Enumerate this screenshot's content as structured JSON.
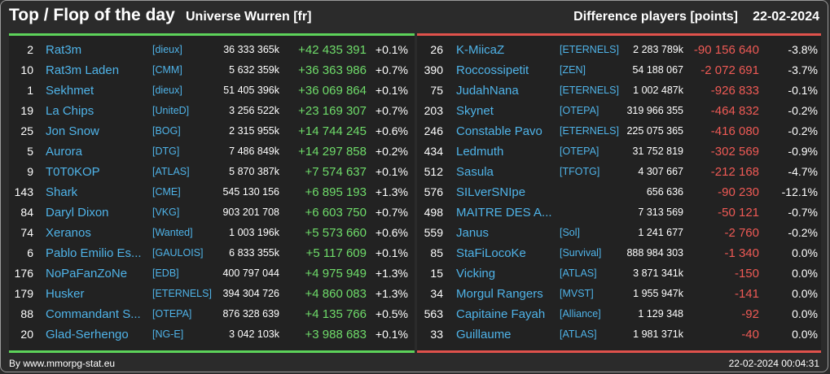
{
  "header": {
    "title": "Top / Flop of the day",
    "universe": "Universe Wurren [fr]",
    "difference_label": "Difference players [points]",
    "date": "22-02-2024"
  },
  "colors": {
    "top_accent": "#5dd35a",
    "flop_accent": "#e0524c",
    "name_link": "#4fb3e8"
  },
  "top": [
    {
      "rank": "2",
      "name": "Rat3m",
      "tag": "[dieux]",
      "total": "36 333 365k",
      "delta": "+42 435 391",
      "pct": "+0.1%"
    },
    {
      "rank": "10",
      "name": "Rat3m Laden",
      "tag": "[CMM]",
      "total": "5 632 359k",
      "delta": "+36 363 986",
      "pct": "+0.7%"
    },
    {
      "rank": "1",
      "name": "Sekhmet",
      "tag": "[dieux]",
      "total": "51 405 396k",
      "delta": "+36 069 864",
      "pct": "+0.1%"
    },
    {
      "rank": "19",
      "name": "La Chips",
      "tag": "[UniteD]",
      "total": "3 256 522k",
      "delta": "+23 169 307",
      "pct": "+0.7%"
    },
    {
      "rank": "25",
      "name": "Jon Snow",
      "tag": "[BOG]",
      "total": "2 315 955k",
      "delta": "+14 744 245",
      "pct": "+0.6%"
    },
    {
      "rank": "5",
      "name": "Aurora",
      "tag": "[DTG]",
      "total": "7 486 849k",
      "delta": "+14 297 858",
      "pct": "+0.2%"
    },
    {
      "rank": "9",
      "name": "T0T0KOP",
      "tag": "[ATLAS]",
      "total": "5 870 387k",
      "delta": "+7 574 637",
      "pct": "+0.1%"
    },
    {
      "rank": "143",
      "name": "Shark",
      "tag": "[CME]",
      "total": "545 130 156",
      "delta": "+6 895 193",
      "pct": "+1.3%"
    },
    {
      "rank": "84",
      "name": "Daryl Dixon",
      "tag": "[VKG]",
      "total": "903 201 708",
      "delta": "+6 603 750",
      "pct": "+0.7%"
    },
    {
      "rank": "74",
      "name": "Xeranos",
      "tag": "[Wanted]",
      "total": "1 003 196k",
      "delta": "+5 573 660",
      "pct": "+0.6%"
    },
    {
      "rank": "6",
      "name": "Pablo Emilio Es...",
      "tag": "[GAULOIS]",
      "total": "6 833 355k",
      "delta": "+5 117 609",
      "pct": "+0.1%"
    },
    {
      "rank": "176",
      "name": "NoPaFanZoNe",
      "tag": "[EDB]",
      "total": "400 797 044",
      "delta": "+4 975 949",
      "pct": "+1.3%"
    },
    {
      "rank": "179",
      "name": "Husker",
      "tag": "[ETERNELS]",
      "total": "394 304 726",
      "delta": "+4 860 083",
      "pct": "+1.3%"
    },
    {
      "rank": "88",
      "name": "Commandant S...",
      "tag": "[OTEPA]",
      "total": "876 328 639",
      "delta": "+4 135 766",
      "pct": "+0.5%"
    },
    {
      "rank": "20",
      "name": "Glad-Serhengo",
      "tag": "[NG-E]",
      "total": "3 042 103k",
      "delta": "+3 988 683",
      "pct": "+0.1%"
    }
  ],
  "flop": [
    {
      "rank": "26",
      "name": "K-MiicaZ",
      "tag": "[ETERNELS]",
      "total": "2 283 789k",
      "delta": "-90 156 640",
      "pct": "-3.8%"
    },
    {
      "rank": "390",
      "name": "Roccossipetit",
      "tag": "[ZEN]",
      "total": "54 188 067",
      "delta": "-2 072 691",
      "pct": "-3.7%"
    },
    {
      "rank": "75",
      "name": "JudahNana",
      "tag": "[ETERNELS]",
      "total": "1 002 487k",
      "delta": "-926 833",
      "pct": "-0.1%"
    },
    {
      "rank": "203",
      "name": "Skynet",
      "tag": "[OTEPA]",
      "total": "319 966 355",
      "delta": "-464 832",
      "pct": "-0.2%"
    },
    {
      "rank": "246",
      "name": "Constable Pavo",
      "tag": "[ETERNELS]",
      "total": "225 075 365",
      "delta": "-416 080",
      "pct": "-0.2%"
    },
    {
      "rank": "434",
      "name": "Ledmuth",
      "tag": "[OTEPA]",
      "total": "31 752 819",
      "delta": "-302 569",
      "pct": "-0.9%"
    },
    {
      "rank": "512",
      "name": "Sasula",
      "tag": "[TFOTG]",
      "total": "4 307 667",
      "delta": "-212 168",
      "pct": "-4.7%"
    },
    {
      "rank": "576",
      "name": "SILverSNIpe",
      "tag": "",
      "total": "656 636",
      "delta": "-90 230",
      "pct": "-12.1%"
    },
    {
      "rank": "498",
      "name": "MAITRE DES A...",
      "tag": "",
      "total": "7 313 569",
      "delta": "-50 121",
      "pct": "-0.7%"
    },
    {
      "rank": "559",
      "name": "Janus",
      "tag": "[Sol]",
      "total": "1 241 677",
      "delta": "-2 760",
      "pct": "-0.2%"
    },
    {
      "rank": "85",
      "name": "StaFiLocoKe",
      "tag": "[Survival]",
      "total": "888 984 303",
      "delta": "-1 340",
      "pct": "0.0%"
    },
    {
      "rank": "15",
      "name": "Vicking",
      "tag": "[ATLAS]",
      "total": "3 871 341k",
      "delta": "-150",
      "pct": "0.0%"
    },
    {
      "rank": "34",
      "name": "Morgul Rangers",
      "tag": "[MVST]",
      "total": "1 955 947k",
      "delta": "-141",
      "pct": "0.0%"
    },
    {
      "rank": "563",
      "name": "Capitaine Fayah",
      "tag": "[Alliance]",
      "total": "1 129 348",
      "delta": "-92",
      "pct": "0.0%"
    },
    {
      "rank": "33",
      "name": "Guillaume",
      "tag": "[ATLAS]",
      "total": "1 981 371k",
      "delta": "-40",
      "pct": "0.0%"
    }
  ],
  "footer": {
    "credit": "By www.mmorpg-stat.eu",
    "timestamp": "22-02-2024 00:04:31"
  }
}
